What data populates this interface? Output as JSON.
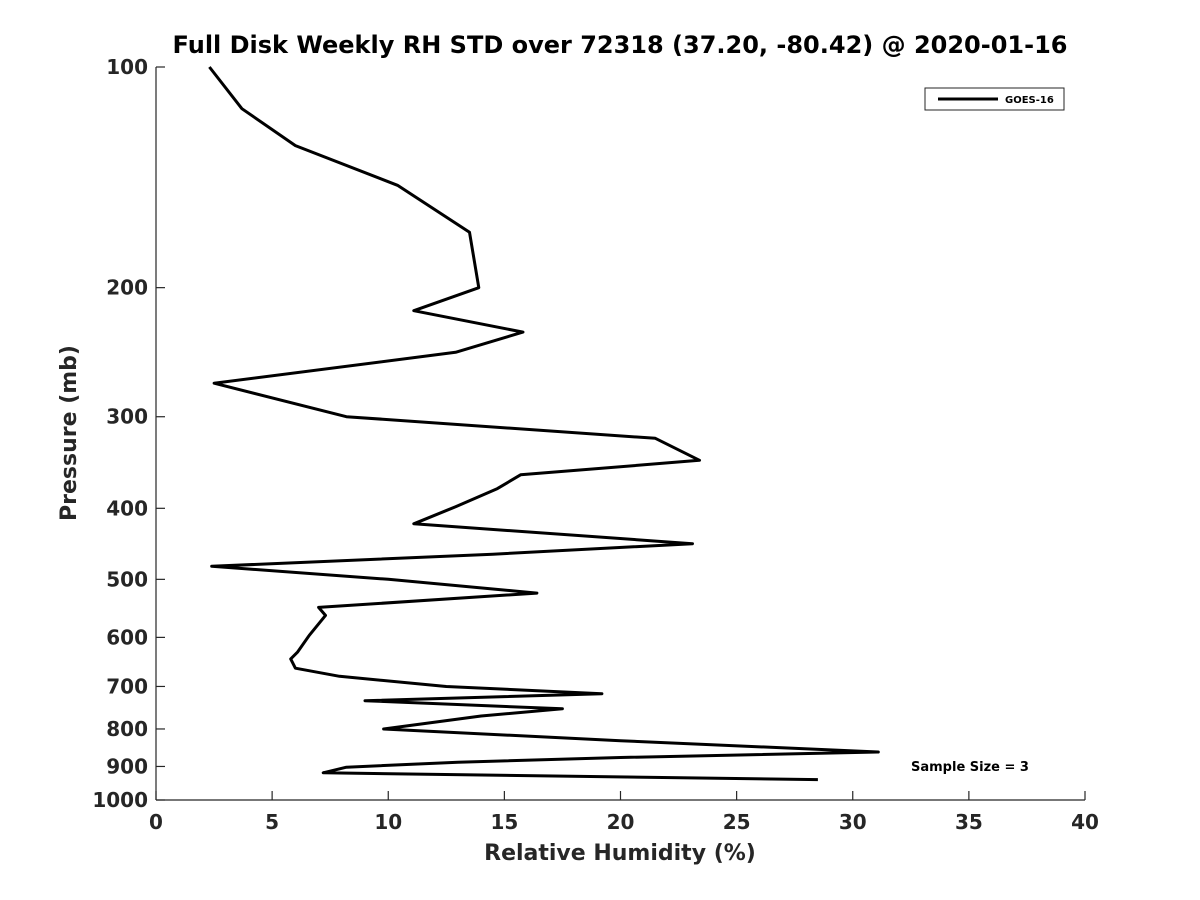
{
  "chart_data": {
    "type": "line",
    "title": "Full Disk Weekly RH STD over 72318 (37.20, -80.42) @ 2020-01-16",
    "xlabel": "Relative Humidity (%)",
    "ylabel": "Pressure (mb)",
    "xlim": [
      0,
      40
    ],
    "ylim": [
      1000,
      100
    ],
    "yscale": "log",
    "x_ticks": [
      0,
      5,
      10,
      15,
      20,
      25,
      30,
      35,
      40
    ],
    "x_tick_labels": [
      "0",
      "5",
      "10",
      "15",
      "20",
      "25",
      "30",
      "35",
      "40"
    ],
    "y_ticks": [
      100,
      200,
      300,
      400,
      500,
      600,
      700,
      800,
      900,
      1000
    ],
    "y_tick_labels": [
      "100",
      "200",
      "300",
      "400",
      "500",
      "600",
      "700",
      "800",
      "900",
      "1000"
    ],
    "grid": false,
    "legend_position": "top-right",
    "series": [
      {
        "name": "GOES-16",
        "color": "#000000",
        "points": [
          [
            2.3,
            100
          ],
          [
            3.7,
            114
          ],
          [
            6.0,
            128
          ],
          [
            10.4,
            145
          ],
          [
            13.5,
            168
          ],
          [
            13.9,
            200
          ],
          [
            11.1,
            215
          ],
          [
            15.8,
            230
          ],
          [
            12.9,
            245
          ],
          [
            2.5,
            270
          ],
          [
            8.2,
            300
          ],
          [
            21.5,
            321
          ],
          [
            23.4,
            344
          ],
          [
            15.7,
            360
          ],
          [
            14.7,
            376
          ],
          [
            12.9,
            398
          ],
          [
            11.1,
            420
          ],
          [
            23.1,
            447
          ],
          [
            14.5,
            462
          ],
          [
            2.4,
            480
          ],
          [
            10.0,
            500
          ],
          [
            16.4,
            522
          ],
          [
            7.0,
            546
          ],
          [
            7.3,
            560
          ],
          [
            6.6,
            596
          ],
          [
            6.1,
            628
          ],
          [
            5.8,
            642
          ],
          [
            6.0,
            661
          ],
          [
            7.9,
            678
          ],
          [
            12.5,
            700
          ],
          [
            19.2,
            716
          ],
          [
            9.0,
            732
          ],
          [
            17.5,
            751
          ],
          [
            14.0,
            768
          ],
          [
            9.8,
            800
          ],
          [
            20.0,
            830
          ],
          [
            31.1,
            860
          ],
          [
            20.0,
            875
          ],
          [
            13.0,
            888
          ],
          [
            8.2,
            902
          ],
          [
            7.2,
            918
          ],
          [
            28.5,
            938
          ]
        ]
      }
    ],
    "annotations": [
      "Sample Size = 3"
    ]
  }
}
